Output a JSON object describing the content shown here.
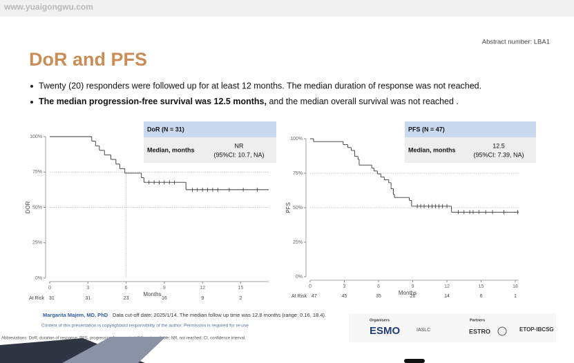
{
  "watermark": "www.yuaigongwu.com",
  "abstract_number": "Abstract number: LBA1",
  "title": "DoR and PFS",
  "bullets": [
    {
      "text": "Twenty (20) responders were followed up for at least 12 months. The median duration of response was not reached."
    },
    {
      "bold": "The median progression-free survival was 12.5 months,",
      "text": " and the median overall survival was not reached ."
    }
  ],
  "chart_data": [
    {
      "type": "line",
      "ylabel": "DOR",
      "xlabel": "Months",
      "color": "#333333",
      "x": [
        0,
        3.3,
        3.6,
        3.9,
        4.3,
        4.8,
        5.2,
        5.5,
        5.9,
        7.2,
        7.4,
        10.7,
        17.2
      ],
      "values": [
        100,
        96.8,
        93.5,
        90.3,
        87.1,
        83.9,
        80.6,
        77.4,
        74.2,
        71.0,
        67.7,
        62.5,
        62.5
      ],
      "censor_x": [
        7.8,
        8.2,
        8.6,
        9.0,
        9.4,
        9.8,
        11.2,
        11.6,
        12.0,
        12.4,
        12.8,
        13.2,
        14.1,
        15.2,
        16.3
      ],
      "censor_y": [
        67.7,
        67.7,
        67.7,
        67.7,
        67.7,
        67.7,
        62.5,
        62.5,
        62.5,
        62.5,
        62.5,
        62.5,
        62.5,
        62.5,
        62.5
      ],
      "xlim": [
        0,
        17.2
      ],
      "xticks": [
        0,
        3,
        6,
        9,
        12,
        15
      ],
      "ylim": [
        0,
        100
      ],
      "yticks": [
        {
          "value": 0,
          "label": "0%"
        },
        {
          "value": 25,
          "label": "25%"
        },
        {
          "value": 50,
          "label": "50%"
        },
        {
          "value": 75,
          "label": "75%"
        },
        {
          "value": 100,
          "label": "100%"
        }
      ],
      "ref_lines": [
        {
          "y": 75,
          "x": 6
        },
        {
          "y": 50
        }
      ],
      "box": {
        "header": "DoR (N = 31)",
        "row_label": "Median, months",
        "value": "NR",
        "ci": "(95%CI: 10.7, NA)"
      },
      "risk_label": "At Risk",
      "risk": [
        31,
        31,
        23,
        16,
        9,
        2
      ]
    },
    {
      "type": "line",
      "ylabel": "PFS",
      "xlabel": "Months",
      "color": "#333333",
      "x": [
        0,
        0.3,
        2.9,
        3.3,
        3.6,
        3.9,
        4.2,
        4.3,
        5.4,
        5.6,
        5.9,
        6.2,
        6.5,
        6.9,
        7.1,
        7.3,
        7.4,
        8.7,
        8.9,
        12.4,
        18.3
      ],
      "values": [
        100,
        97.9,
        95.7,
        93.6,
        91.5,
        87.2,
        85.1,
        80.9,
        78.7,
        76.6,
        74.5,
        72.3,
        70.2,
        68.1,
        63.8,
        59.6,
        57.4,
        55.3,
        51.1,
        46.8,
        46.8
      ],
      "censor_x": [
        9.4,
        9.7,
        10.0,
        10.4,
        10.7,
        11.0,
        11.3,
        11.6,
        12.0,
        13.0,
        13.5,
        14.0,
        14.3,
        14.8,
        15.4,
        16.0,
        17.0,
        18.2
      ],
      "censor_y": [
        51.1,
        51.1,
        51.1,
        51.1,
        51.1,
        51.1,
        51.1,
        51.1,
        51.1,
        46.8,
        46.8,
        46.8,
        46.8,
        46.8,
        46.8,
        46.8,
        46.8,
        46.8
      ],
      "xlim": [
        0,
        18.3
      ],
      "xticks": [
        0,
        3,
        6,
        9,
        12,
        15,
        18
      ],
      "ylim": [
        0,
        100
      ],
      "yticks": [
        {
          "value": 0,
          "label": "0%"
        },
        {
          "value": 25,
          "label": "25%"
        },
        {
          "value": 50,
          "label": "50%"
        },
        {
          "value": 75,
          "label": "75%"
        },
        {
          "value": 100,
          "label": "100%"
        }
      ],
      "ref_lines": [
        {
          "y": 75
        },
        {
          "y": 50
        }
      ],
      "box": {
        "header": "PFS (N = 47)",
        "row_label": "Median, months",
        "value": "12.5",
        "ci": "(95%CI: 7.39, NA)"
      },
      "risk_label": "At Risk",
      "risk": [
        47,
        45,
        35,
        26,
        14,
        6,
        1
      ]
    }
  ],
  "footer": {
    "author": "Margarita Majem, MD, PhD",
    "cutoff": "Data cut-off date: 2025/1/14. The median follow up time was 12.8 months (range: 0.16, 18.4).",
    "copyright": "Content of this presentation is copyrightand responsibility of the author. Permission is required for re-use",
    "abbreviations": "Abbreviations: DoR, duration of response; PFS, progression-free survival; NA, not available; NR, not reached; CI, confidence interval."
  },
  "logos": {
    "organisers": "Organisers",
    "esmo": "ESMO",
    "iaslc": "IASLC",
    "partners": "Partners",
    "estro": "ESTRO",
    "etop": "ETOP·IBCSG"
  }
}
